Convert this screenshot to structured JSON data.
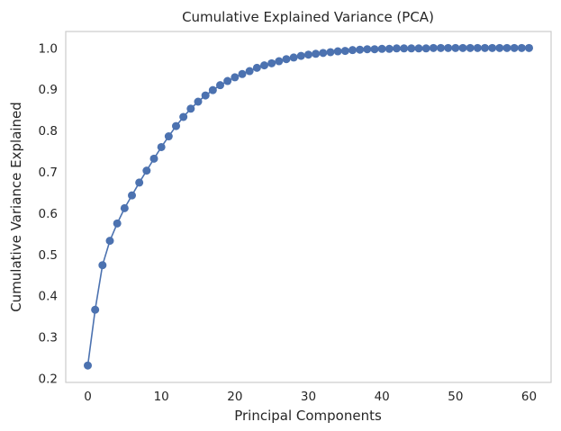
{
  "chart_data": {
    "type": "line",
    "title": "Cumulative Explained Variance (PCA)",
    "xlabel": "Principal Components",
    "ylabel": "Cumulative Variance Explained",
    "xlim": [
      -3,
      63
    ],
    "ylim": [
      0.19,
      1.04
    ],
    "xticks": [
      0,
      10,
      20,
      30,
      40,
      50,
      60
    ],
    "yticks": [
      0.2,
      0.3,
      0.4,
      0.5,
      0.6,
      0.7,
      0.8,
      0.9,
      1.0
    ],
    "ytick_labels": [
      "0.2",
      "0.3",
      "0.4",
      "0.5",
      "0.6",
      "0.7",
      "0.8",
      "0.9",
      "1.0"
    ],
    "grid": false,
    "legend": "none",
    "series": [
      {
        "color": "#4c72b0",
        "marker": "circle",
        "x": [
          0,
          1,
          2,
          3,
          4,
          5,
          6,
          7,
          8,
          9,
          10,
          11,
          12,
          13,
          14,
          15,
          16,
          17,
          18,
          19,
          20,
          21,
          22,
          23,
          24,
          25,
          26,
          27,
          28,
          29,
          30,
          31,
          32,
          33,
          34,
          35,
          36,
          37,
          38,
          39,
          40,
          41,
          42,
          43,
          44,
          45,
          46,
          47,
          48,
          49,
          50,
          51,
          52,
          53,
          54,
          55,
          56,
          57,
          58,
          59,
          60
        ],
        "values": [
          0.231,
          0.366,
          0.474,
          0.533,
          0.575,
          0.612,
          0.643,
          0.674,
          0.703,
          0.732,
          0.76,
          0.786,
          0.811,
          0.833,
          0.853,
          0.87,
          0.885,
          0.898,
          0.91,
          0.92,
          0.929,
          0.937,
          0.944,
          0.952,
          0.958,
          0.963,
          0.968,
          0.973,
          0.977,
          0.981,
          0.984,
          0.986,
          0.988,
          0.99,
          0.992,
          0.993,
          0.995,
          0.996,
          0.997,
          0.997,
          0.998,
          0.998,
          0.999,
          0.999,
          0.999,
          0.999,
          0.999,
          1.0,
          1.0,
          1.0,
          1.0,
          1.0,
          1.0,
          1.0,
          1.0,
          1.0,
          1.0,
          1.0,
          1.0,
          1.0,
          1.0
        ]
      }
    ]
  }
}
